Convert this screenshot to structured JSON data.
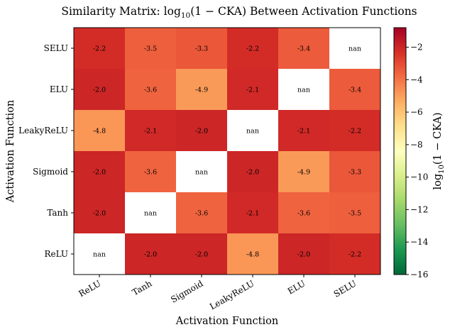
{
  "chart_data": {
    "type": "heatmap",
    "title_prefix": "Similarity Matrix: log",
    "title_sub": "10",
    "title_suffix": "(1 − CKA) Between Activation Functions",
    "xlabel": "Activation Function",
    "ylabel": "Activation Function",
    "x_categories": [
      "ReLU",
      "Tanh",
      "Sigmoid",
      "LeakyReLU",
      "ELU",
      "SELU"
    ],
    "y_categories_top_to_bottom": [
      "SELU",
      "ELU",
      "LeakyReLU",
      "Sigmoid",
      "Tanh",
      "ReLU"
    ],
    "values": [
      [
        -2.2,
        -3.5,
        -3.3,
        -2.2,
        -3.4,
        null
      ],
      [
        -2.0,
        -3.6,
        -4.9,
        -2.1,
        null,
        -3.4
      ],
      [
        -4.8,
        -2.1,
        -2.0,
        null,
        -2.1,
        -2.2
      ],
      [
        -2.0,
        -3.6,
        null,
        -2.0,
        -4.9,
        -3.3
      ],
      [
        -2.0,
        null,
        -3.6,
        -2.1,
        -3.6,
        -3.5
      ],
      [
        null,
        -2.0,
        -2.0,
        -4.8,
        -2.0,
        -2.2
      ]
    ],
    "cell_labels": [
      [
        "-2.2",
        "-3.5",
        "-3.3",
        "-2.2",
        "-3.4",
        "nan"
      ],
      [
        "-2.0",
        "-3.6",
        "-4.9",
        "-2.1",
        "nan",
        "-3.4"
      ],
      [
        "-4.8",
        "-2.1",
        "-2.0",
        "nan",
        "-2.1",
        "-2.2"
      ],
      [
        "-2.0",
        "-3.6",
        "nan",
        "-2.0",
        "-4.9",
        "-3.3"
      ],
      [
        "-2.0",
        "nan",
        "-3.6",
        "-2.1",
        "-3.6",
        "-3.5"
      ],
      [
        "nan",
        "-2.0",
        "-2.0",
        "-4.8",
        "-2.0",
        "-2.2"
      ]
    ],
    "colormap": "RdYlGn_r",
    "vmin": -16.0,
    "vmax": -0.8,
    "colorbar": {
      "label_prefix": "log",
      "label_sub": "10",
      "label_suffix": "(1 − CKA)",
      "ticks": [
        -2,
        -4,
        -6,
        -8,
        -10,
        -12,
        -14,
        -16
      ],
      "tick_labels": [
        "−2",
        "−4",
        "−6",
        "−8",
        "−10",
        "−12",
        "−14",
        "−16"
      ]
    },
    "nan_color": "#ffffff"
  }
}
